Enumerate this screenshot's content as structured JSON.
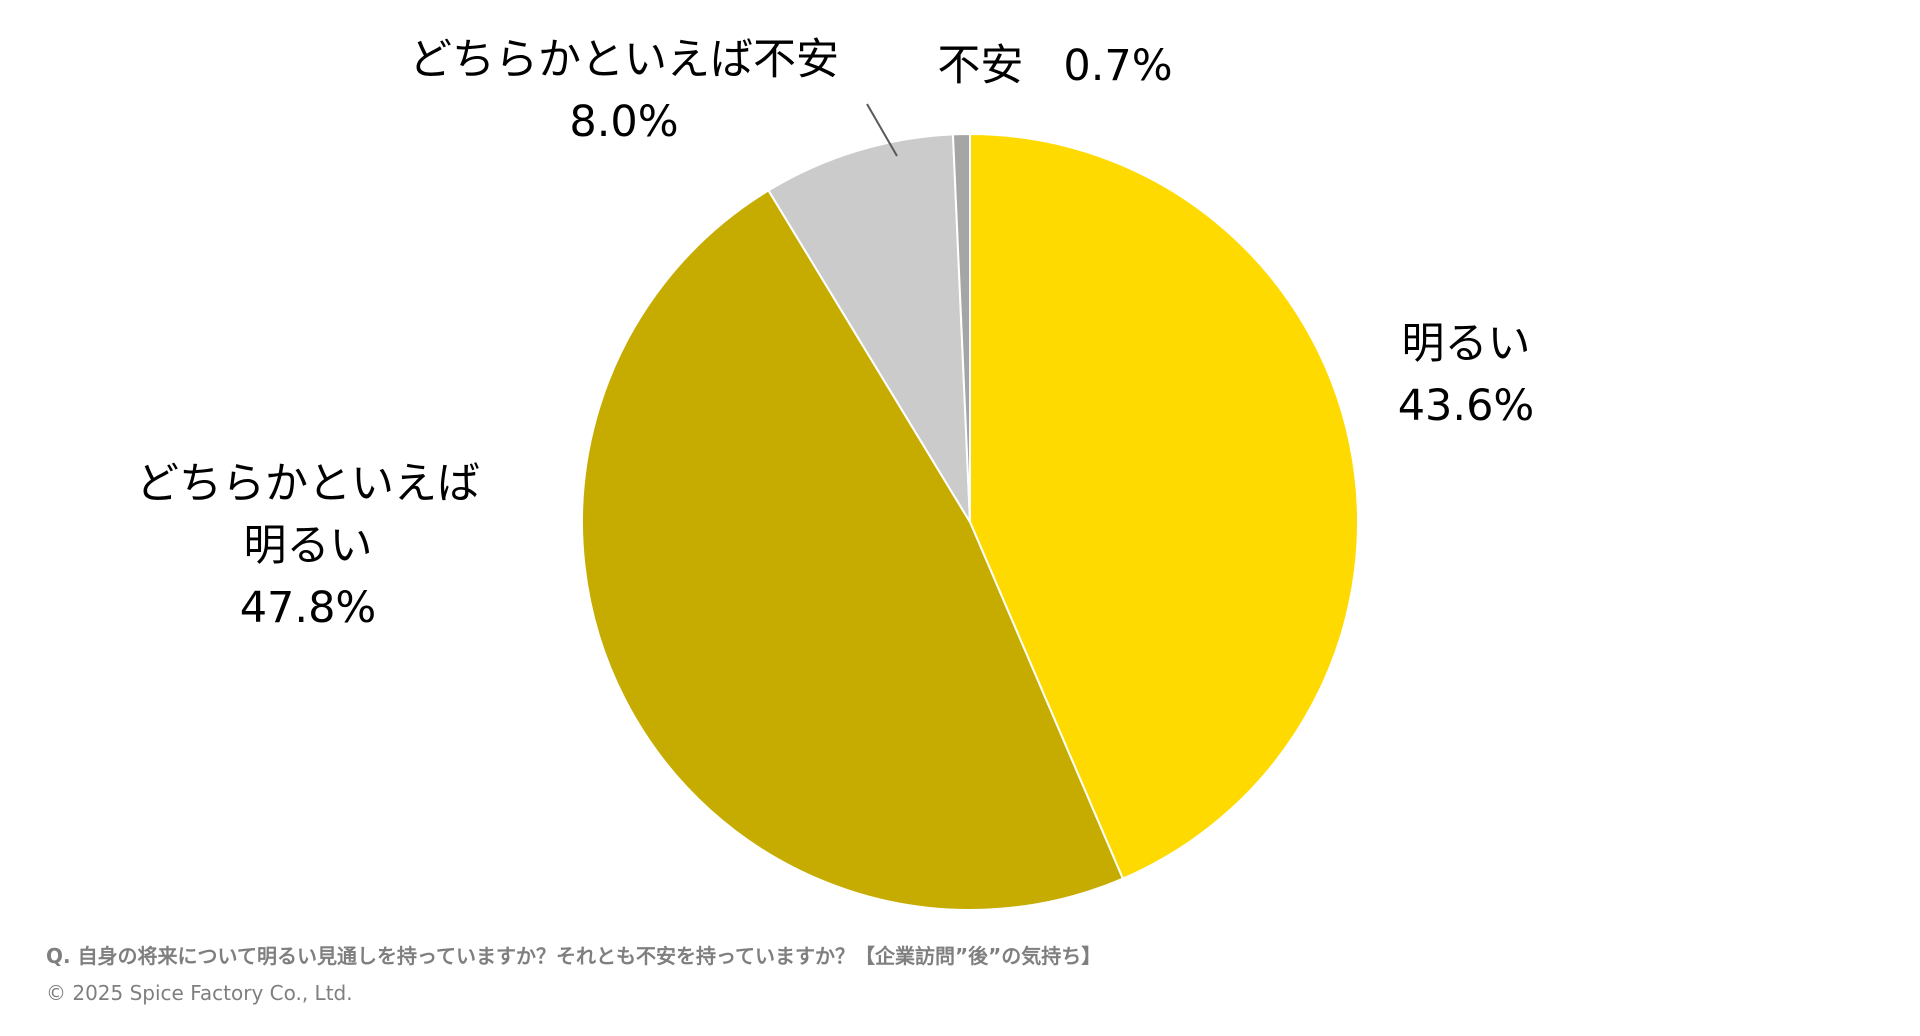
{
  "chart_data": {
    "type": "pie",
    "start_angle": "12 o'clock",
    "direction": "clockwise",
    "slices": [
      {
        "label_lines": [
          "明るい"
        ],
        "value": 43.6,
        "value_label": "43.6%",
        "color": "#FFDA00"
      },
      {
        "label_lines": [
          "どちらかといえば",
          "明るい"
        ],
        "value": 47.8,
        "value_label": "47.8%",
        "color": "#C6AC00"
      },
      {
        "label_lines": [
          "どちらかといえば不安"
        ],
        "value": 8.0,
        "value_label": "8.0%",
        "color": "#CBCBCB"
      },
      {
        "label_lines": [
          "不安"
        ],
        "value": 0.7,
        "value_label": "0.7%",
        "color": "#A5A5A5"
      }
    ],
    "slice_border_color": "#FFFFFF",
    "legend": "none",
    "label_color": "#000000",
    "leader_line_color": "#595959"
  },
  "footer": {
    "question": "Q. 自身の将来について明るい見通しを持っていますか？それとも不安を持っていますか？【企業訪問”後”の気持ち】",
    "copyright": "© 2025 Spice Factory Co., Ltd."
  }
}
